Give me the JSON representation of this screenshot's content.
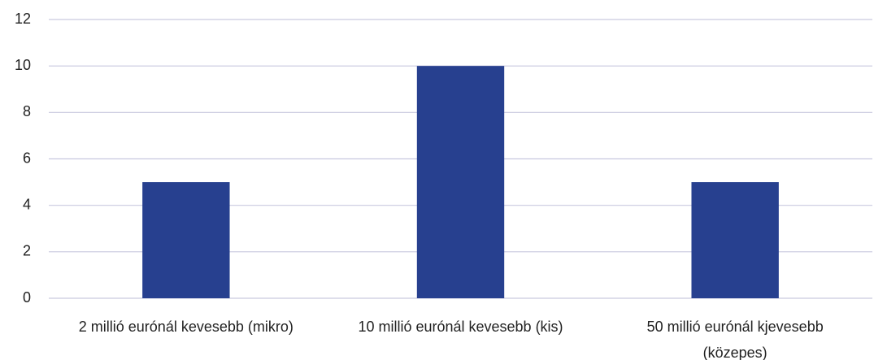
{
  "chart_data": {
    "type": "bar",
    "categories": [
      "2 millió eurónál kevesebb (mikro)",
      "10 millió eurónál kevesebb (kis)",
      "50 millió eurónál kjevesebb (közepes)"
    ],
    "values": [
      5,
      10,
      5
    ],
    "color": "#27408f",
    "ylim": [
      0,
      12
    ],
    "yticks": [
      0,
      2,
      4,
      6,
      8,
      10,
      12
    ],
    "grid": true
  }
}
